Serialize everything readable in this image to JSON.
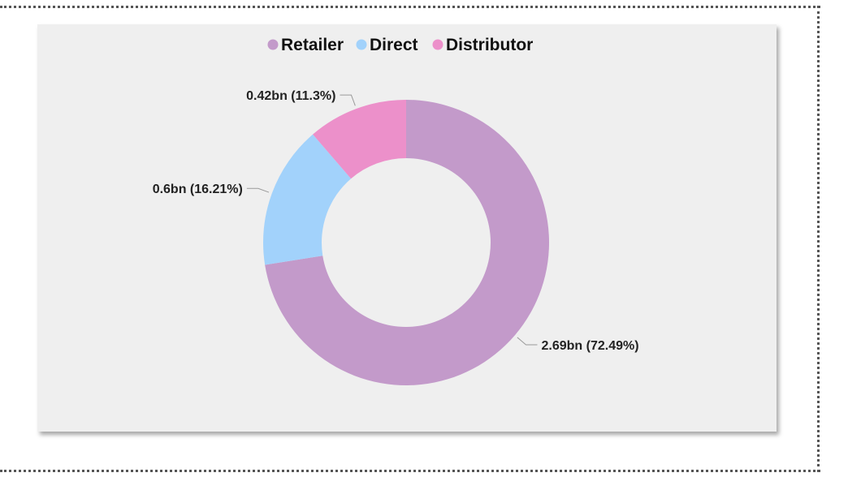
{
  "chart_data": {
    "type": "pie",
    "variant": "donut",
    "legend_position": "top-center",
    "series": [
      {
        "name": "Retailer",
        "value": 2.69,
        "percent": 72.49,
        "label": "2.69bn (72.49%)",
        "color": "#c39aca"
      },
      {
        "name": "Direct",
        "value": 0.6,
        "percent": 16.21,
        "label": "0.6bn (16.21%)",
        "color": "#a2d2fb"
      },
      {
        "name": "Distributor",
        "value": 0.42,
        "percent": 11.3,
        "label": "0.42bn (11.3%)",
        "color": "#ec90ca"
      }
    ],
    "background_color": "#efefef"
  }
}
